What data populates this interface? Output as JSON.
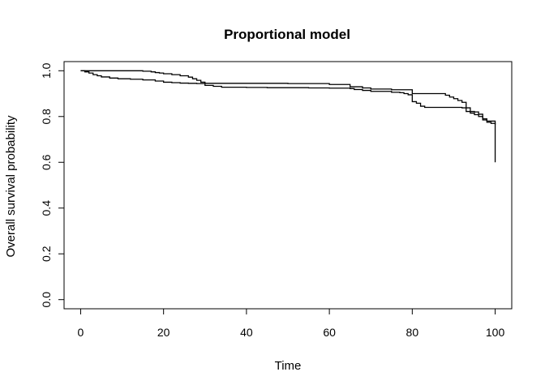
{
  "chart_data": {
    "type": "line",
    "title": "Proportional model",
    "xlabel": "Time",
    "ylabel": "Overall survival probability",
    "xlim": [
      -4,
      104
    ],
    "ylim": [
      -0.04,
      1.04
    ],
    "xticks": [
      0,
      20,
      40,
      60,
      80,
      100
    ],
    "yticks": [
      0.0,
      0.2,
      0.4,
      0.6,
      0.8,
      1.0
    ],
    "xtick_labels": [
      "0",
      "20",
      "40",
      "60",
      "80",
      "100"
    ],
    "ytick_labels": [
      "0.0",
      "0.2",
      "0.4",
      "0.6",
      "0.8",
      "1.0"
    ],
    "grid": false,
    "legend": "none",
    "series": [
      {
        "step": true,
        "color": "#000000",
        "x": [
          0,
          1,
          2,
          3,
          4,
          5,
          7,
          9,
          12,
          15,
          18,
          20,
          22,
          24,
          26,
          28,
          30,
          32,
          34,
          40,
          45,
          50,
          55,
          60,
          65,
          66,
          68,
          70,
          75,
          77,
          78,
          79,
          80,
          81,
          82,
          83,
          84,
          86,
          88,
          90,
          92,
          93,
          94,
          95,
          96,
          97,
          98,
          99,
          100,
          100
        ],
        "y": [
          1.0,
          0.995,
          0.99,
          0.983,
          0.978,
          0.973,
          0.968,
          0.965,
          0.963,
          0.96,
          0.955,
          0.95,
          0.948,
          0.946,
          0.945,
          0.944,
          0.936,
          0.932,
          0.928,
          0.927,
          0.926,
          0.926,
          0.925,
          0.924,
          0.922,
          0.918,
          0.914,
          0.91,
          0.906,
          0.904,
          0.9,
          0.895,
          0.865,
          0.858,
          0.845,
          0.84,
          0.84,
          0.84,
          0.84,
          0.84,
          0.838,
          0.822,
          0.815,
          0.808,
          0.8,
          0.785,
          0.775,
          0.77,
          0.765,
          0.6
        ]
      },
      {
        "step": true,
        "color": "#000000",
        "x": [
          0,
          10,
          15,
          17,
          18,
          19,
          20,
          22,
          24,
          26,
          27,
          28,
          29,
          30,
          40,
          50,
          60,
          65,
          68,
          70,
          75,
          80,
          82,
          85,
          88,
          89,
          90,
          91,
          92,
          93,
          94,
          95,
          96,
          97,
          98,
          100
        ],
        "y": [
          1.0,
          1.0,
          0.998,
          0.995,
          0.992,
          0.99,
          0.987,
          0.983,
          0.978,
          0.972,
          0.965,
          0.958,
          0.95,
          0.945,
          0.945,
          0.944,
          0.94,
          0.93,
          0.925,
          0.92,
          0.917,
          0.9,
          0.9,
          0.9,
          0.893,
          0.885,
          0.878,
          0.87,
          0.862,
          0.838,
          0.822,
          0.82,
          0.81,
          0.79,
          0.78,
          0.765
        ]
      }
    ]
  }
}
